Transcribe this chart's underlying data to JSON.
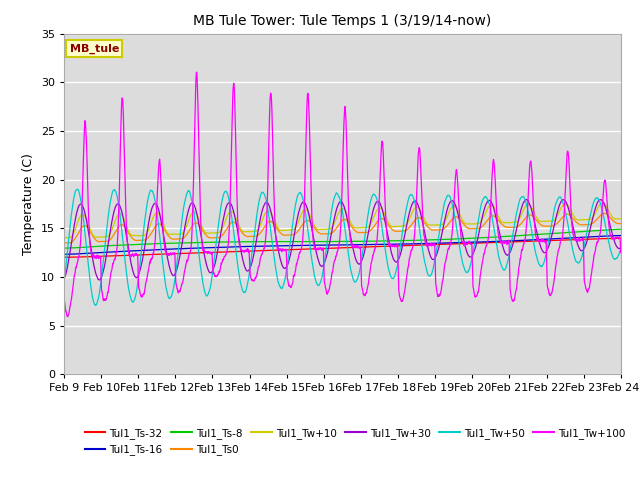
{
  "title": "MB Tule Tower: Tule Temps 1 (3/19/14-now)",
  "ylabel": "Temperature (C)",
  "xlim": [
    0,
    15
  ],
  "ylim": [
    0,
    35
  ],
  "yticks": [
    0,
    5,
    10,
    15,
    20,
    25,
    30,
    35
  ],
  "xtick_labels": [
    "Feb 9",
    "Feb 10",
    "Feb 11",
    "Feb 12",
    "Feb 13",
    "Feb 14",
    "Feb 15",
    "Feb 16",
    "Feb 17",
    "Feb 18",
    "Feb 19",
    "Feb 20",
    "Feb 21",
    "Feb 22",
    "Feb 23",
    "Feb 24"
  ],
  "plot_bg_color": "#dcdcdc",
  "fig_bg_color": "#ffffff",
  "grid_color": "#ffffff",
  "mb_tule_box": {
    "facecolor": "#ffffcc",
    "edgecolor": "#cccc00",
    "textcolor": "#8b0000"
  },
  "series": [
    {
      "label": "Tul1_Ts-32",
      "color": "#ff0000"
    },
    {
      "label": "Tul1_Ts-16",
      "color": "#0000cc"
    },
    {
      "label": "Tul1_Ts-8",
      "color": "#00cc00"
    },
    {
      "label": "Tul1_Ts0",
      "color": "#ff8800"
    },
    {
      "label": "Tul1_Tw+10",
      "color": "#cccc00"
    },
    {
      "label": "Tul1_Tw+30",
      "color": "#9900cc"
    },
    {
      "label": "Tul1_Tw+50",
      "color": "#00cccc"
    },
    {
      "label": "Tul1_Tw+100",
      "color": "#ff00ff"
    }
  ]
}
